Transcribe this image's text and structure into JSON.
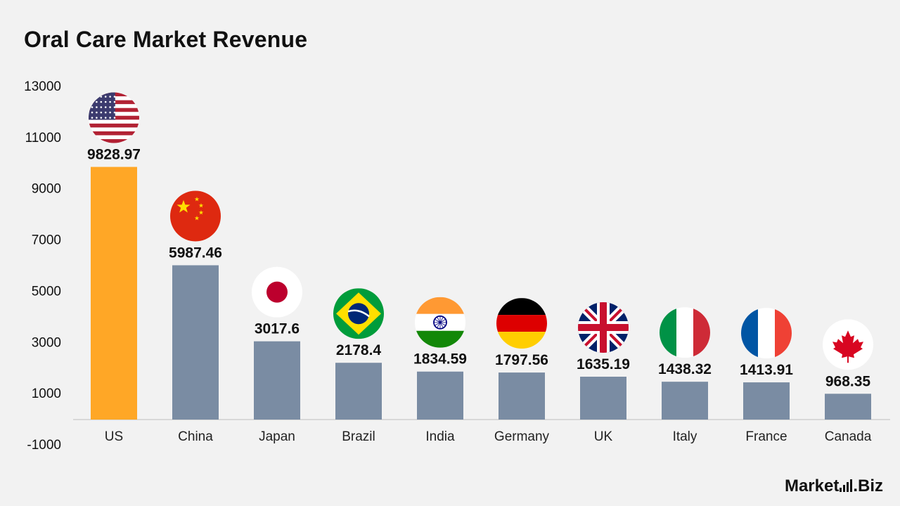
{
  "chart_data": {
    "type": "bar",
    "title": "Oral Care Market Revenue",
    "xlabel": "",
    "ylabel": "",
    "ylim": [
      -1000,
      13000
    ],
    "yticks": [
      13000,
      11000,
      9000,
      7000,
      5000,
      3000,
      1000,
      -1000
    ],
    "categories": [
      "US",
      "China",
      "Japan",
      "Brazil",
      "India",
      "Germany",
      "UK",
      "Italy",
      "France",
      "Canada"
    ],
    "values": [
      9828.97,
      5987.46,
      3017.6,
      2178.4,
      1834.59,
      1797.56,
      1635.19,
      1438.32,
      1413.91,
      968.35
    ],
    "value_labels": [
      "9828.97",
      "5987.46",
      "3017.6",
      "2178.4",
      "1834.59",
      "1797.56",
      "1635.19",
      "1438.32",
      "1413.91",
      "968.35"
    ],
    "flags": [
      "us-flag-icon",
      "china-flag-icon",
      "japan-flag-icon",
      "brazil-flag-icon",
      "india-flag-icon",
      "germany-flag-icon",
      "uk-flag-icon",
      "italy-flag-icon",
      "france-flag-icon",
      "canada-flag-icon"
    ],
    "colors": {
      "highlight": "#FFA726",
      "default": "#7A8CA3",
      "baseline": "#d0d0d0"
    },
    "grid": false,
    "legend": "none"
  },
  "brand": {
    "logo_text_left": "Market",
    "logo_text_right": ".Biz"
  }
}
